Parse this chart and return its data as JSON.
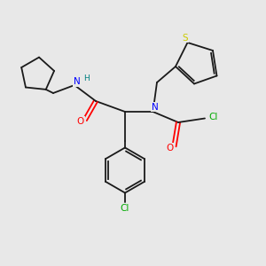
{
  "background_color": "#e8e8e8",
  "bond_color": "#1a1a1a",
  "N_color": "#0000ff",
  "O_color": "#ff0000",
  "S_color": "#cccc00",
  "Cl_color": "#00aa00",
  "H_color": "#008080",
  "figsize": [
    3.0,
    3.0
  ],
  "dpi": 100,
  "xlim": [
    0,
    10
  ],
  "ylim": [
    0,
    10
  ]
}
